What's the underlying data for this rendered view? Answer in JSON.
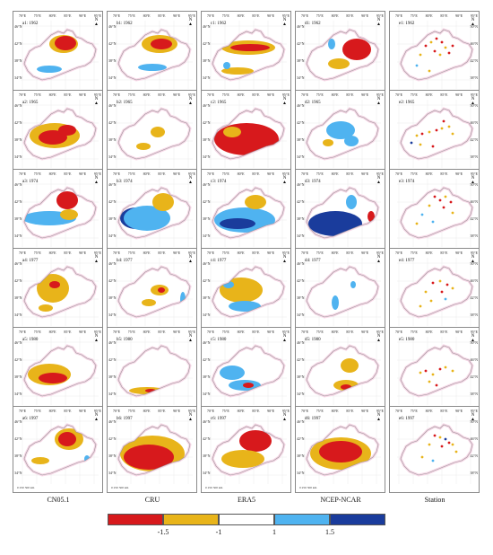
{
  "columns": [
    "CN05.1",
    "CRU",
    "ERA5",
    "NCEP-NCAR",
    "Station"
  ],
  "panel_rows": [
    [
      "a1: 1962",
      "b1: 1962",
      "c1: 1962",
      "d1: 1962",
      "e1: 1962"
    ],
    [
      "a2: 1965",
      "b2: 1965",
      "c2: 1965",
      "d2: 1965",
      "e2: 1965"
    ],
    [
      "a3: 1974",
      "b3: 1974",
      "c3: 1974",
      "d3: 1974",
      "e3: 1974"
    ],
    [
      "a4: 1977",
      "b4: 1977",
      "c4: 1977",
      "d4: 1977",
      "e4: 1977"
    ],
    [
      "a5: 1980",
      "b5: 1980",
      "c5: 1980",
      "d5: 1980",
      "e5: 1980"
    ],
    [
      "a6: 1997",
      "b6: 1997",
      "c6: 1997",
      "d6: 1997",
      "e6: 1997"
    ]
  ],
  "axes": {
    "lon_ticks": [
      "70°E",
      "75°E",
      "80°E",
      "85°E",
      "90°E",
      "95°E"
    ],
    "lat_ticks": [
      "46°N",
      "42°N",
      "38°N",
      "34°N"
    ],
    "lat_ticks_right": [
      "50°N",
      "46°N",
      "42°N",
      "38°N"
    ]
  },
  "north_label": "N",
  "scale_label": "0   250   500 km",
  "legend": {
    "ticks": [
      "-1.5",
      "-1",
      "1",
      "1.5"
    ],
    "colors": [
      "#d7191c",
      "#e8b41a",
      "#ffffff",
      "#4fb3f0",
      "#1a3c9c"
    ]
  },
  "colors": {
    "severe_dry": "#d7191c",
    "moderate_dry": "#e8b41a",
    "normal": "#ffffff",
    "moderate_wet": "#4fb3f0",
    "severe_wet": "#1a3c9c",
    "outline": "#9a9a9a"
  }
}
